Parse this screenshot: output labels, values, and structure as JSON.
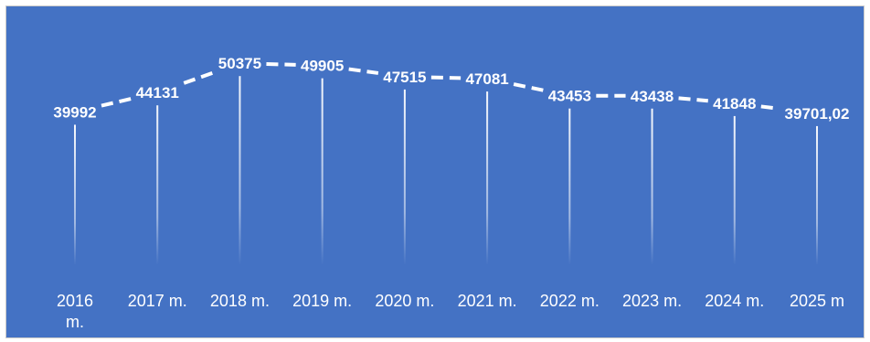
{
  "chart_data": {
    "type": "line",
    "categories": [
      "2016 m.",
      "2017 m.",
      "2018 m.",
      "2019 m.",
      "2020 m.",
      "2021 m.",
      "2022 m.",
      "2023 m.",
      "2024 m.",
      "2025 m"
    ],
    "values": [
      39992,
      44131,
      50375,
      49905,
      47515,
      47081,
      43453,
      43438,
      41848,
      39701.02
    ],
    "value_labels": [
      "39992",
      "44131",
      "50375",
      "49905",
      "47515",
      "47081",
      "43453",
      "43438",
      "41848",
      "39701,02"
    ],
    "line_style": "dashed",
    "drop_lines": true,
    "background_color": "#4472c4",
    "text_color": "#ffffff",
    "line_color": "#ffffff",
    "title": "",
    "xlabel": "",
    "ylabel": ""
  }
}
